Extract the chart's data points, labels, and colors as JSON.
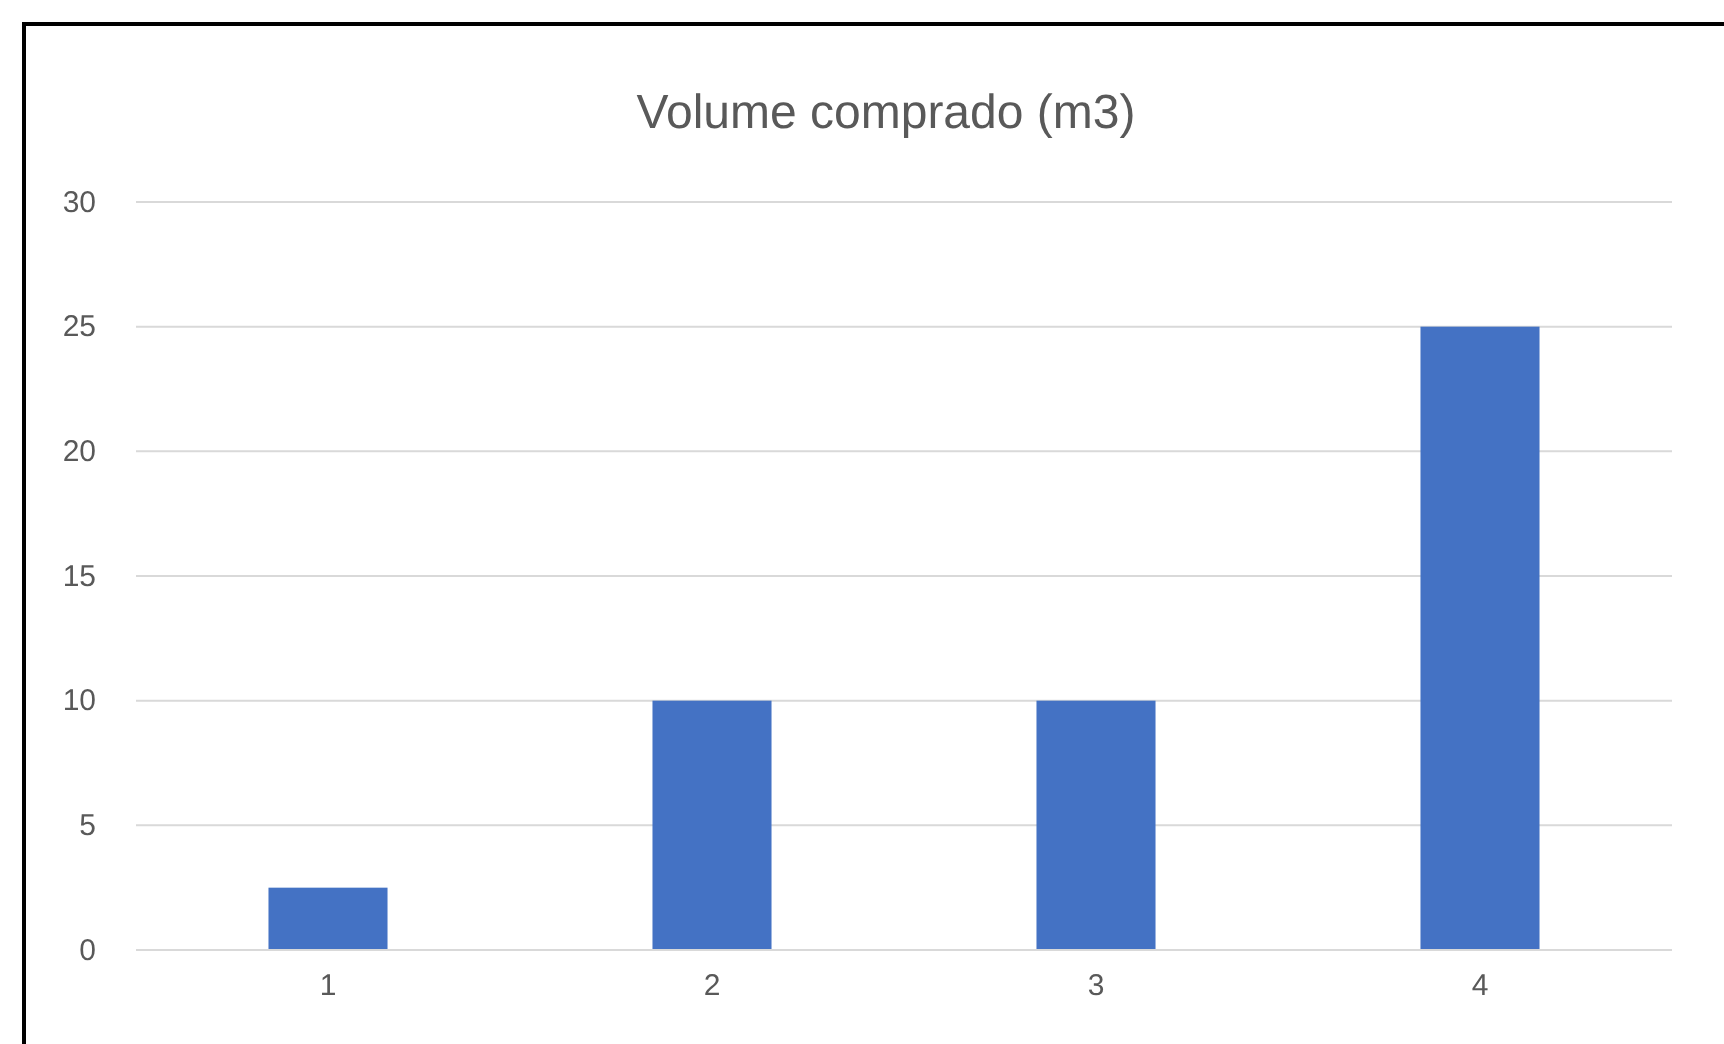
{
  "chart_data": {
    "type": "bar",
    "title": "Volume comprado (m3)",
    "categories": [
      "1",
      "2",
      "3",
      "4"
    ],
    "values": [
      2.5,
      10,
      10,
      25
    ],
    "color": "#4472c4",
    "ylim": [
      0,
      30
    ],
    "yticks": [
      0,
      5,
      10,
      15,
      20,
      25,
      30
    ],
    "grid": "y"
  }
}
